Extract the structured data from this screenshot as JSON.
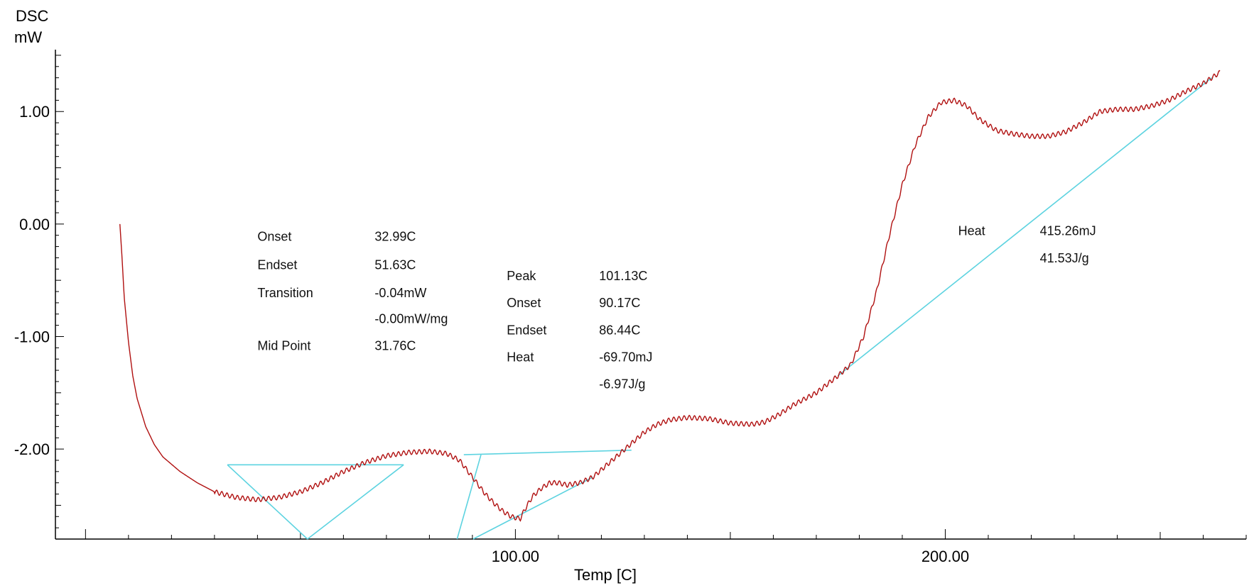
{
  "chart_data": {
    "type": "line",
    "ylabel_line1": "DSC",
    "ylabel_line2": "mW",
    "xlabel": "Temp  [C]",
    "xlim": [
      -7,
      270
    ],
    "ylim": [
      -2.8,
      1.55
    ],
    "x_tick_labels": [
      {
        "value": 100,
        "label": "100.00"
      },
      {
        "value": 200,
        "label": "200.00"
      }
    ],
    "y_tick_labels": [
      {
        "value": 1,
        "label": "1.00"
      },
      {
        "value": 0,
        "label": "0.00"
      },
      {
        "value": -1,
        "label": "-1.00"
      },
      {
        "value": -2,
        "label": "-2.00"
      }
    ],
    "grid": false,
    "colors": {
      "curve": "#b01010",
      "baseline": "#5dd3e0",
      "axis": "#000000"
    },
    "curve": {
      "x": [
        8,
        8.5,
        9,
        10,
        11,
        12,
        14,
        16,
        18,
        22,
        26,
        30,
        35,
        40,
        45,
        50,
        55,
        60,
        65,
        70,
        75,
        80,
        84,
        87,
        89,
        91,
        93,
        95,
        97,
        99,
        100,
        101.13,
        102,
        104,
        106,
        108,
        110,
        112,
        115,
        118,
        121,
        124,
        127,
        130,
        133,
        136,
        140,
        145,
        150,
        155,
        158,
        161,
        165,
        170,
        175,
        178,
        181,
        184,
        187,
        190,
        193,
        196,
        199,
        202,
        205,
        208,
        212,
        216,
        220,
        224,
        228,
        232,
        236,
        240,
        244,
        248,
        252,
        256,
        260,
        264
      ],
      "y": [
        0,
        -0.3,
        -0.65,
        -1.05,
        -1.35,
        -1.55,
        -1.8,
        -1.96,
        -2.07,
        -2.2,
        -2.3,
        -2.38,
        -2.43,
        -2.45,
        -2.43,
        -2.38,
        -2.3,
        -2.2,
        -2.12,
        -2.06,
        -2.03,
        -2.02,
        -2.04,
        -2.1,
        -2.2,
        -2.3,
        -2.4,
        -2.48,
        -2.55,
        -2.6,
        -2.61,
        -2.62,
        -2.55,
        -2.42,
        -2.35,
        -2.3,
        -2.3,
        -2.32,
        -2.3,
        -2.25,
        -2.15,
        -2.05,
        -1.95,
        -1.85,
        -1.78,
        -1.74,
        -1.72,
        -1.73,
        -1.77,
        -1.78,
        -1.76,
        -1.7,
        -1.6,
        -1.5,
        -1.35,
        -1.25,
        -1.0,
        -0.6,
        -0.1,
        0.35,
        0.7,
        0.95,
        1.08,
        1.1,
        1.05,
        0.93,
        0.83,
        0.8,
        0.78,
        0.78,
        0.82,
        0.9,
        1.0,
        1.02,
        1.02,
        1.05,
        1.1,
        1.18,
        1.25,
        1.35
      ]
    },
    "baselines": [
      {
        "x": [
          33,
          74
        ],
        "y": [
          -2.14,
          -2.14
        ]
      },
      {
        "x": [
          33,
          51.63
        ],
        "y": [
          -2.14,
          -2.8
        ]
      },
      {
        "x": [
          51.63,
          74
        ],
        "y": [
          -2.8,
          -2.14
        ]
      },
      {
        "x": [
          88,
          127
        ],
        "y": [
          -2.05,
          -2.01
        ]
      },
      {
        "x": [
          86.44,
          92
        ],
        "y": [
          -2.8,
          -2.05
        ]
      },
      {
        "x": [
          90.17,
          118
        ],
        "y": [
          -2.8,
          -2.25
        ]
      },
      {
        "x": [
          175,
          262
        ],
        "y": [
          -1.35,
          1.3
        ]
      }
    ],
    "annotations": [
      {
        "label": "Onset",
        "value": "32.99C",
        "x": 40,
        "y": -0.15
      },
      {
        "label": "Endset",
        "value": "51.63C",
        "x": 40,
        "y": -0.4
      },
      {
        "label": "Transition",
        "value": "-0.04mW",
        "x": 40,
        "y": -0.65
      },
      {
        "label": "",
        "value": "-0.00mW/mg",
        "x": 40,
        "y": -0.88
      },
      {
        "label": "Mid Point",
        "value": "31.76C",
        "x": 40,
        "y": -1.12
      },
      {
        "label": "Peak",
        "value": "101.13C",
        "x": 98,
        "y": -0.5
      },
      {
        "label": "Onset",
        "value": "90.17C",
        "x": 98,
        "y": -0.74
      },
      {
        "label": "Endset",
        "value": "86.44C",
        "x": 98,
        "y": -0.98
      },
      {
        "label": "Heat",
        "value": "-69.70mJ",
        "x": 98,
        "y": -1.22
      },
      {
        "label": "",
        "value": "-6.97J/g",
        "x": 98,
        "y": -1.46
      },
      {
        "label": "Heat",
        "value": "415.26mJ",
        "x": 203,
        "y": -0.1
      },
      {
        "label": "",
        "value": "41.53J/g",
        "x": 203,
        "y": -0.34
      }
    ]
  }
}
